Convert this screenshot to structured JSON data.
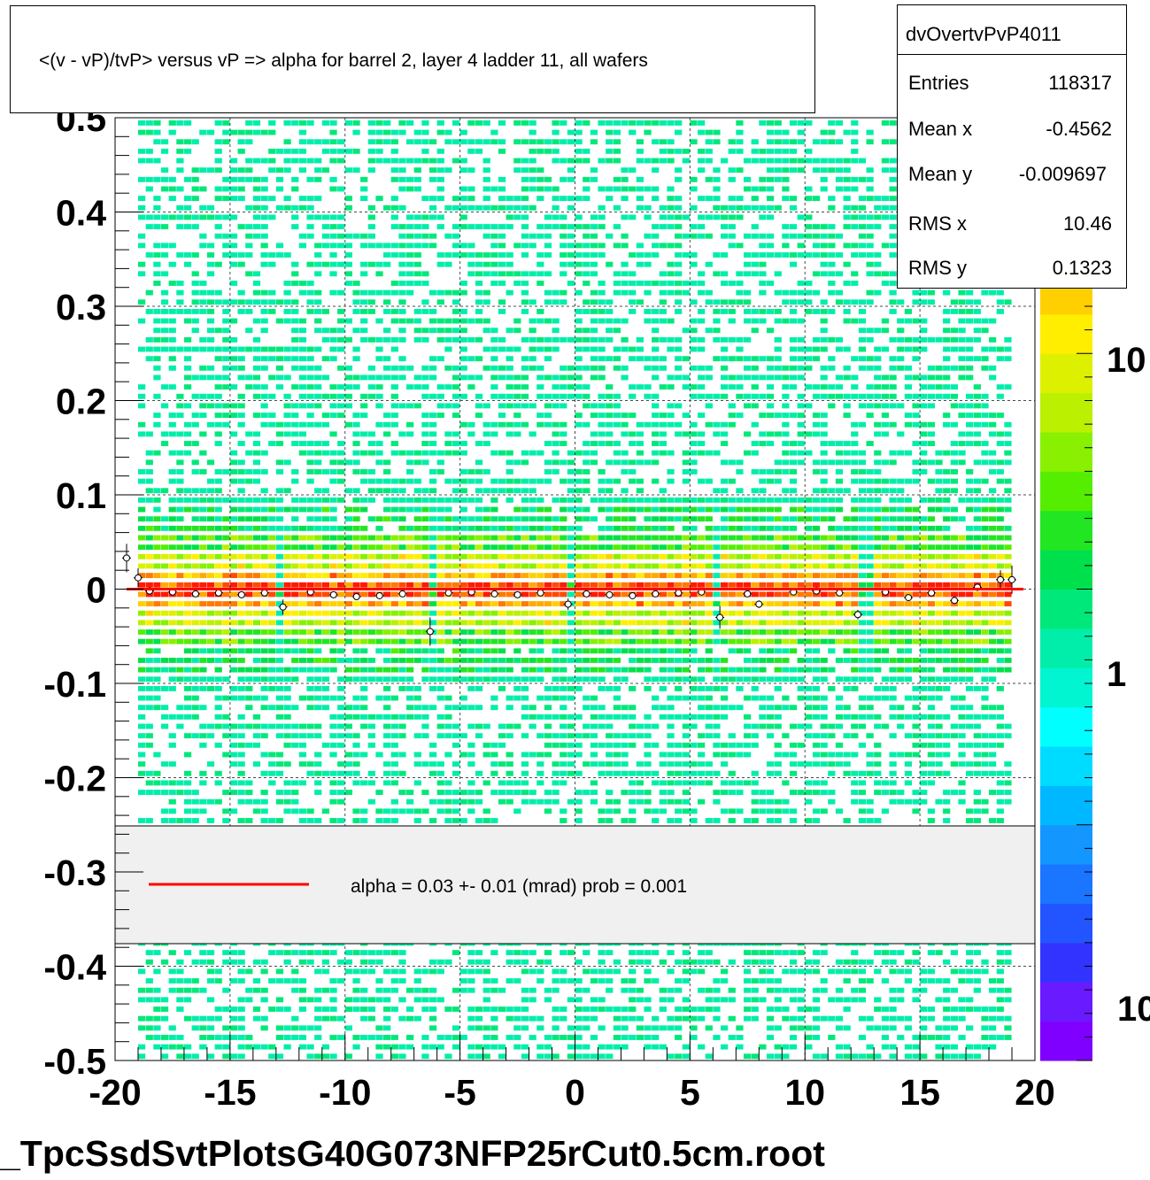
{
  "title": "<(v - vP)/tvP> versus   vP => alpha for barrel 2, layer 4 ladder 11, all wafers",
  "stats": {
    "name": "dvOvertvPvP4011",
    "rows": [
      {
        "label": "Entries",
        "value": "118317"
      },
      {
        "label": "Mean x",
        "value": "-0.4562"
      },
      {
        "label": "Mean y",
        "value": "-0.009697"
      },
      {
        "label": "RMS x",
        "value": "10.46"
      },
      {
        "label": "RMS y",
        "value": "0.1323"
      }
    ]
  },
  "legend": {
    "text": "alpha =    0.03 +-  0.01 (mrad) prob = 0.001",
    "line_color": "#ff0000"
  },
  "filename": "_TpcSsdSvtPlotsG40G073NFP25rCut0.5cm.root",
  "colorbar": {
    "labels": [
      "10",
      "1",
      "10"
    ],
    "palette": [
      "#7f00ff",
      "#6a1aff",
      "#3333ff",
      "#2255ff",
      "#1a75ff",
      "#1496ff",
      "#00b8ff",
      "#00dcff",
      "#00ffff",
      "#00f5d0",
      "#00eeaa",
      "#00e87a",
      "#00e04c",
      "#22e622",
      "#55ee00",
      "#88f000",
      "#bbf000",
      "#ddf000",
      "#ffee00",
      "#ffd000",
      "#ffaa00",
      "#ff7a00",
      "#ff4a00",
      "#ff1a00"
    ]
  },
  "chart_data": {
    "type": "heatmap",
    "xlim": [
      -20,
      20
    ],
    "ylim": [
      -0.5,
      0.5
    ],
    "x_ticks": [
      "-20",
      "-15",
      "-10",
      "-5",
      "0",
      "5",
      "10",
      "15",
      "20"
    ],
    "y_ticks": [
      "-0.5",
      "-0.4",
      "-0.3",
      "-0.2",
      "-0.1",
      "0",
      "0.1",
      "0.2",
      "0.3",
      "0.4",
      "0.5"
    ],
    "grid": true,
    "log_z": true,
    "band_center_y": 0.0,
    "gaps_x": [
      -12.8,
      -6.3,
      -0.1,
      6.3,
      12.7
    ],
    "profile_points": [
      {
        "x": -19.5,
        "y": 0.033,
        "err": 0.015
      },
      {
        "x": -19.0,
        "y": 0.012,
        "err": 0.01
      },
      {
        "x": -18.5,
        "y": -0.002,
        "err": 0.004
      },
      {
        "x": -17.5,
        "y": -0.003,
        "err": 0.003
      },
      {
        "x": -16.5,
        "y": -0.005,
        "err": 0.003
      },
      {
        "x": -15.5,
        "y": -0.004,
        "err": 0.003
      },
      {
        "x": -14.5,
        "y": -0.006,
        "err": 0.003
      },
      {
        "x": -13.5,
        "y": -0.004,
        "err": 0.003
      },
      {
        "x": -12.7,
        "y": -0.019,
        "err": 0.008
      },
      {
        "x": -11.5,
        "y": -0.003,
        "err": 0.003
      },
      {
        "x": -10.5,
        "y": -0.006,
        "err": 0.003
      },
      {
        "x": -9.5,
        "y": -0.008,
        "err": 0.003
      },
      {
        "x": -8.5,
        "y": -0.007,
        "err": 0.003
      },
      {
        "x": -7.5,
        "y": -0.005,
        "err": 0.003
      },
      {
        "x": -6.3,
        "y": -0.045,
        "err": 0.015
      },
      {
        "x": -5.5,
        "y": -0.004,
        "err": 0.003
      },
      {
        "x": -4.5,
        "y": -0.003,
        "err": 0.003
      },
      {
        "x": -3.5,
        "y": -0.005,
        "err": 0.003
      },
      {
        "x": -2.5,
        "y": -0.006,
        "err": 0.003
      },
      {
        "x": -1.5,
        "y": -0.004,
        "err": 0.003
      },
      {
        "x": -0.3,
        "y": -0.016,
        "err": 0.006
      },
      {
        "x": 0.5,
        "y": -0.005,
        "err": 0.003
      },
      {
        "x": 1.5,
        "y": -0.006,
        "err": 0.003
      },
      {
        "x": 2.5,
        "y": -0.007,
        "err": 0.003
      },
      {
        "x": 3.5,
        "y": -0.005,
        "err": 0.003
      },
      {
        "x": 4.5,
        "y": -0.004,
        "err": 0.003
      },
      {
        "x": 5.5,
        "y": -0.003,
        "err": 0.003
      },
      {
        "x": 6.3,
        "y": -0.03,
        "err": 0.012
      },
      {
        "x": 7.5,
        "y": -0.005,
        "err": 0.003
      },
      {
        "x": 8.0,
        "y": -0.016,
        "err": 0.004
      },
      {
        "x": 9.5,
        "y": -0.003,
        "err": 0.003
      },
      {
        "x": 10.5,
        "y": -0.002,
        "err": 0.003
      },
      {
        "x": 11.5,
        "y": -0.004,
        "err": 0.003
      },
      {
        "x": 12.3,
        "y": -0.027,
        "err": 0.005
      },
      {
        "x": 13.5,
        "y": -0.003,
        "err": 0.003
      },
      {
        "x": 14.5,
        "y": -0.009,
        "err": 0.003
      },
      {
        "x": 15.5,
        "y": -0.004,
        "err": 0.003
      },
      {
        "x": 16.5,
        "y": -0.012,
        "err": 0.004
      },
      {
        "x": 17.5,
        "y": 0.002,
        "err": 0.004
      },
      {
        "x": 18.5,
        "y": 0.01,
        "err": 0.01
      },
      {
        "x": 19.0,
        "y": 0.01,
        "err": 0.015
      }
    ],
    "fit_line": {
      "x": [
        -19.5,
        19.5
      ],
      "y": [
        0.0,
        0.0
      ],
      "color": "#ff0000"
    }
  }
}
